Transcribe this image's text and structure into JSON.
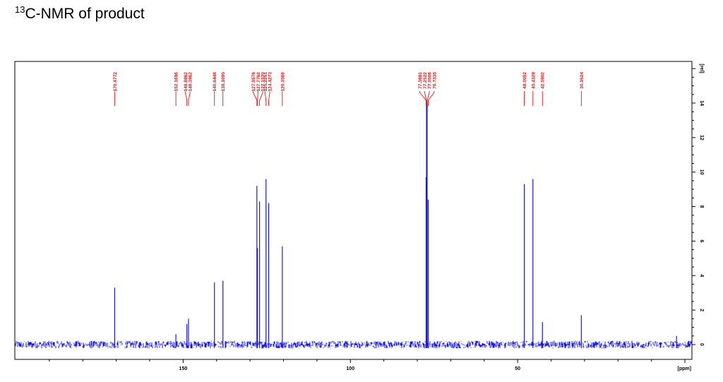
{
  "title": {
    "sup": "13",
    "main": "C-NMR of product"
  },
  "chart_data": {
    "type": "line",
    "title": "13C-NMR of product",
    "xlabel": "[ppm]",
    "ylabel": "[rel]",
    "xlim": [
      198,
      0
    ],
    "ylim": [
      -1,
      16.6
    ],
    "x_ticks": [
      "150",
      "100",
      "50"
    ],
    "y_ticks": [
      "0",
      "2",
      "4",
      "6",
      "8",
      "10",
      "12",
      "14"
    ],
    "grid": false,
    "colors": {
      "spectrum": "#1a1ad8",
      "peak_labels": "#e01818"
    },
    "peaks": [
      {
        "ppm": 170.4772,
        "label": "170.4772",
        "height": 3.3
      },
      {
        "ppm": 152.1696,
        "label": "152.1696",
        "height": 0.6
      },
      {
        "ppm": 148.8862,
        "label": "148.8862",
        "height": 1.2
      },
      {
        "ppm": 148.3962,
        "label": "148.3962",
        "height": 1.5
      },
      {
        "ppm": 140.6448,
        "label": "140.6448",
        "height": 3.6
      },
      {
        "ppm": 138.1095,
        "label": "138.1095",
        "height": 3.7
      },
      {
        "ppm": 127.9576,
        "label": "127.9576",
        "height": 9.2
      },
      {
        "ppm": 127.7762,
        "label": "127.7762",
        "height": 5.6
      },
      {
        "ppm": 127.157,
        "label": "127.1570",
        "height": 8.3
      },
      {
        "ppm": 125.2251,
        "label": "125.2251",
        "height": 9.6
      },
      {
        "ppm": 124.4273,
        "label": "124.4273",
        "height": 8.2
      },
      {
        "ppm": 120.3569,
        "label": "120.3569",
        "height": 5.7
      },
      {
        "ppm": 77.3681,
        "label": "77.3681",
        "height": 9.7
      },
      {
        "ppm": 77.2522,
        "label": "77.2522",
        "height": 14.1
      },
      {
        "ppm": 77.0506,
        "label": "77.0506",
        "height": 14.0
      },
      {
        "ppm": 76.7335,
        "label": "76.7335",
        "height": 8.4
      },
      {
        "ppm": 48.0052,
        "label": "48.0052",
        "height": 9.3
      },
      {
        "ppm": 45.4328,
        "label": "45.4328",
        "height": 9.6
      },
      {
        "ppm": 42.5902,
        "label": "42.5902",
        "height": 1.3
      },
      {
        "ppm": 30.9524,
        "label": "30.9524",
        "height": 1.7
      },
      {
        "ppm": 2.5,
        "label": "",
        "height": 0.5
      }
    ],
    "baseline_noise_amplitude": 0.22
  }
}
